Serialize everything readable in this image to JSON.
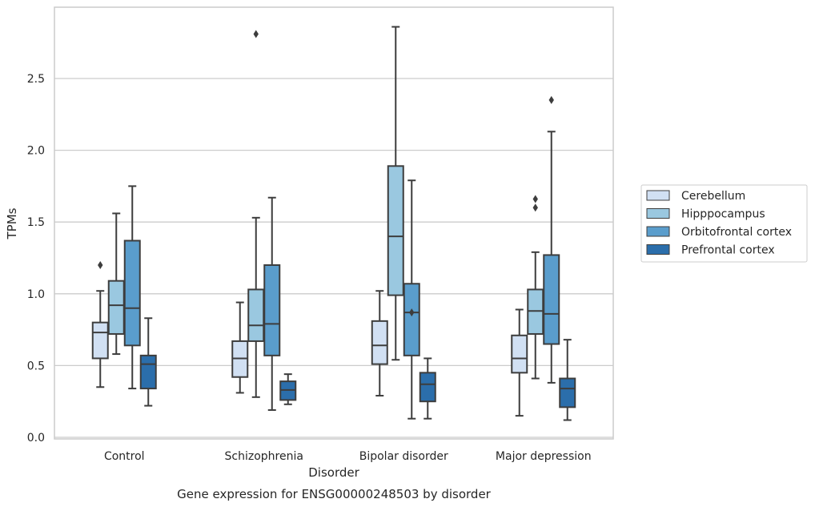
{
  "chart_data": {
    "type": "box",
    "title": "Gene expression for ENSG00000248503 by disorder",
    "xlabel": "Disorder",
    "ylabel": "TPMs",
    "ylim": [
      -0.01,
      2.95
    ],
    "yticks": [
      "0.0",
      "0.5",
      "1.0",
      "1.5",
      "2.0",
      "2.5"
    ],
    "grid": true,
    "legend_position": "right",
    "categories": [
      "Control",
      "Schizophrenia",
      "Bipolar disorder",
      "Major depression"
    ],
    "series": [
      {
        "name": "Cerebellum",
        "color": "#d1e0f3",
        "boxes": [
          {
            "whisker_low": 0.35,
            "q1": 0.55,
            "median": 0.73,
            "q3": 0.8,
            "whisker_high": 1.02,
            "outliers": [
              1.2
            ]
          },
          {
            "whisker_low": 0.31,
            "q1": 0.42,
            "median": 0.55,
            "q3": 0.67,
            "whisker_high": 0.94,
            "outliers": []
          },
          {
            "whisker_low": 0.29,
            "q1": 0.51,
            "median": 0.64,
            "q3": 0.81,
            "whisker_high": 1.02,
            "outliers": []
          },
          {
            "whisker_low": 0.15,
            "q1": 0.45,
            "median": 0.55,
            "q3": 0.71,
            "whisker_high": 0.89,
            "outliers": []
          }
        ]
      },
      {
        "name": "Hipppocampus",
        "color": "#9ac8e0",
        "boxes": [
          {
            "whisker_low": 0.58,
            "q1": 0.72,
            "median": 0.92,
            "q3": 1.09,
            "whisker_high": 1.56,
            "outliers": []
          },
          {
            "whisker_low": 0.28,
            "q1": 0.67,
            "median": 0.78,
            "q3": 1.03,
            "whisker_high": 1.53,
            "outliers": [
              2.81
            ]
          },
          {
            "whisker_low": 0.54,
            "q1": 0.99,
            "median": 1.4,
            "q3": 1.89,
            "whisker_high": 2.86,
            "outliers": []
          },
          {
            "whisker_low": 0.41,
            "q1": 0.72,
            "median": 0.88,
            "q3": 1.03,
            "whisker_high": 1.29,
            "outliers": [
              1.6,
              1.66
            ]
          }
        ]
      },
      {
        "name": "Orbitofrontal cortex",
        "color": "#5a9dcc",
        "boxes": [
          {
            "whisker_low": 0.34,
            "q1": 0.64,
            "median": 0.9,
            "q3": 1.37,
            "whisker_high": 1.75,
            "outliers": []
          },
          {
            "whisker_low": 0.19,
            "q1": 0.57,
            "median": 0.79,
            "q3": 1.2,
            "whisker_high": 1.67,
            "outliers": []
          },
          {
            "whisker_low": 0.13,
            "q1": 0.57,
            "median": 0.87,
            "q3": 1.07,
            "whisker_high": 1.79,
            "outliers": [
              0.87
            ]
          },
          {
            "whisker_low": 0.38,
            "q1": 0.65,
            "median": 0.86,
            "q3": 1.27,
            "whisker_high": 2.13,
            "outliers": [
              2.35
            ]
          }
        ]
      },
      {
        "name": "Prefrontal cortex",
        "color": "#2b6eab",
        "boxes": [
          {
            "whisker_low": 0.22,
            "q1": 0.34,
            "median": 0.51,
            "q3": 0.57,
            "whisker_high": 0.83,
            "outliers": []
          },
          {
            "whisker_low": 0.23,
            "q1": 0.26,
            "median": 0.33,
            "q3": 0.39,
            "whisker_high": 0.44,
            "outliers": []
          },
          {
            "whisker_low": 0.13,
            "q1": 0.25,
            "median": 0.37,
            "q3": 0.45,
            "whisker_high": 0.55,
            "outliers": []
          },
          {
            "whisker_low": 0.12,
            "q1": 0.21,
            "median": 0.34,
            "q3": 0.41,
            "whisker_high": 0.68,
            "outliers": []
          }
        ]
      }
    ]
  }
}
